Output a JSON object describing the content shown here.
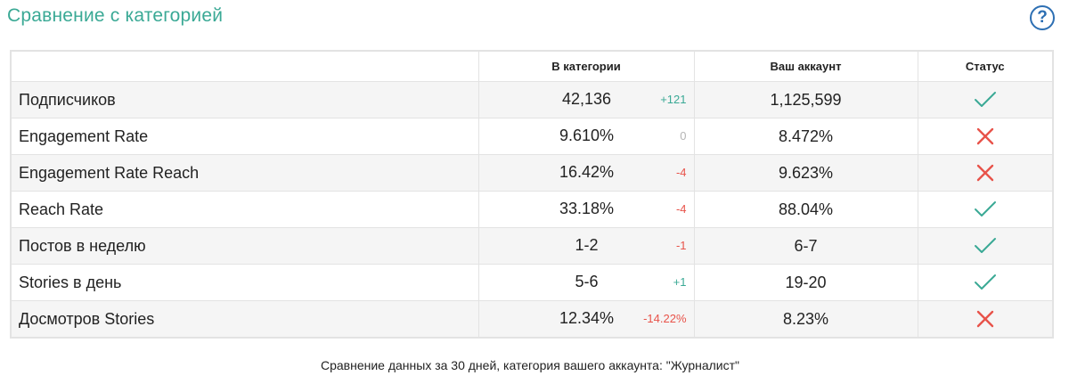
{
  "header": {
    "title": "Сравнение с категорией",
    "help_label": "?"
  },
  "table": {
    "columns": [
      "",
      "В категории",
      "Ваш аккаунт",
      "Статус"
    ],
    "rows": [
      {
        "metric": "Подписчиков",
        "category": "42,136",
        "delta": "+121",
        "delta_trend": "up",
        "account": "1,125,599",
        "status": "ok"
      },
      {
        "metric": "Engagement Rate",
        "category": "9.610%",
        "delta": "0",
        "delta_trend": "neutral",
        "account": "8.472%",
        "status": "bad"
      },
      {
        "metric": "Engagement Rate Reach",
        "category": "16.42%",
        "delta": "-4",
        "delta_trend": "down",
        "account": "9.623%",
        "status": "bad"
      },
      {
        "metric": "Reach Rate",
        "category": "33.18%",
        "delta": "-4",
        "delta_trend": "down",
        "account": "88.04%",
        "status": "ok"
      },
      {
        "metric": "Постов в неделю",
        "category": "1-2",
        "delta": "-1",
        "delta_trend": "down",
        "account": "6-7",
        "status": "ok"
      },
      {
        "metric": "Stories в день",
        "category": "5-6",
        "delta": "+1",
        "delta_trend": "up",
        "account": "19-20",
        "status": "ok"
      },
      {
        "metric": "Досмотров Stories",
        "category": "12.34%",
        "delta": "-14.22%",
        "delta_trend": "down",
        "account": "8.23%",
        "status": "bad"
      }
    ]
  },
  "footnote": "Сравнение данных за 30 дней, категория вашего аккаунта: \"Журналист\"",
  "colors": {
    "title": "#3aa995",
    "help": "#2d6fb3",
    "delta_up": "#3aa995",
    "delta_down": "#e8534a",
    "delta_neutral": "#b5b5b5",
    "check_icon": "#3aa995",
    "cross_icon": "#e8534a"
  },
  "icons": {
    "ok": "check-icon",
    "bad": "cross-icon"
  }
}
